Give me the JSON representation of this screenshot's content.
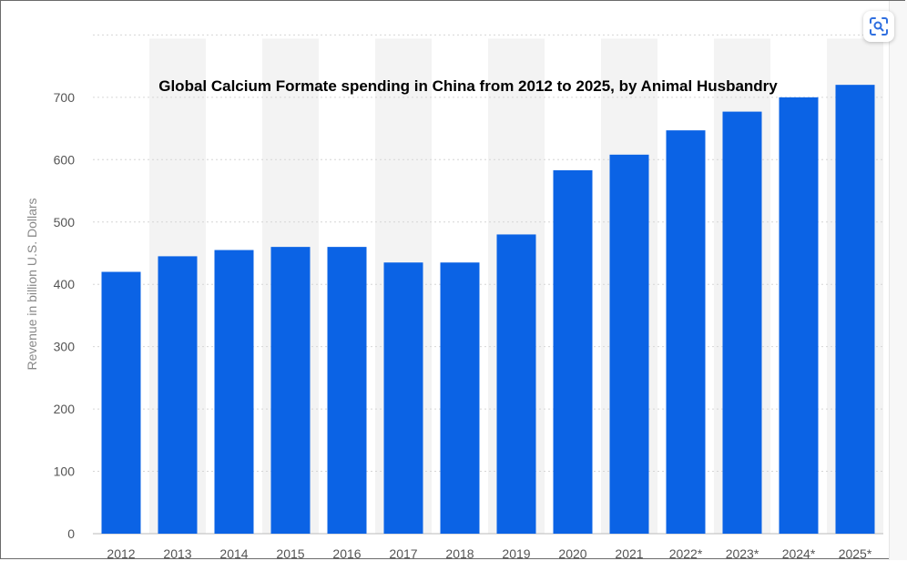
{
  "chart_data": {
    "type": "bar",
    "title": "Global Calcium Formate spending in China from 2012 to 2025, by Animal Husbandry",
    "ylabel": "Revenue in billion U.S. Dollars",
    "xlabel": "",
    "categories": [
      "2012",
      "2013",
      "2014",
      "2015",
      "2016",
      "2017",
      "2018",
      "2019",
      "2020",
      "2021",
      "2022*",
      "2023*",
      "2024*",
      "2025*"
    ],
    "values": [
      420,
      445,
      455,
      460,
      460,
      435,
      435,
      480,
      583,
      608,
      647,
      677,
      700,
      720
    ],
    "ylim": [
      0,
      800
    ],
    "yticks": [
      0,
      100,
      200,
      300,
      400,
      500,
      600,
      700
    ],
    "grid": true,
    "legend": "none",
    "bar_color": "#0b63e5",
    "band_color": "#f3f3f3"
  },
  "ui": {
    "scan_icon": "scan-lens-icon",
    "accent_color": "#2f6fe0"
  }
}
